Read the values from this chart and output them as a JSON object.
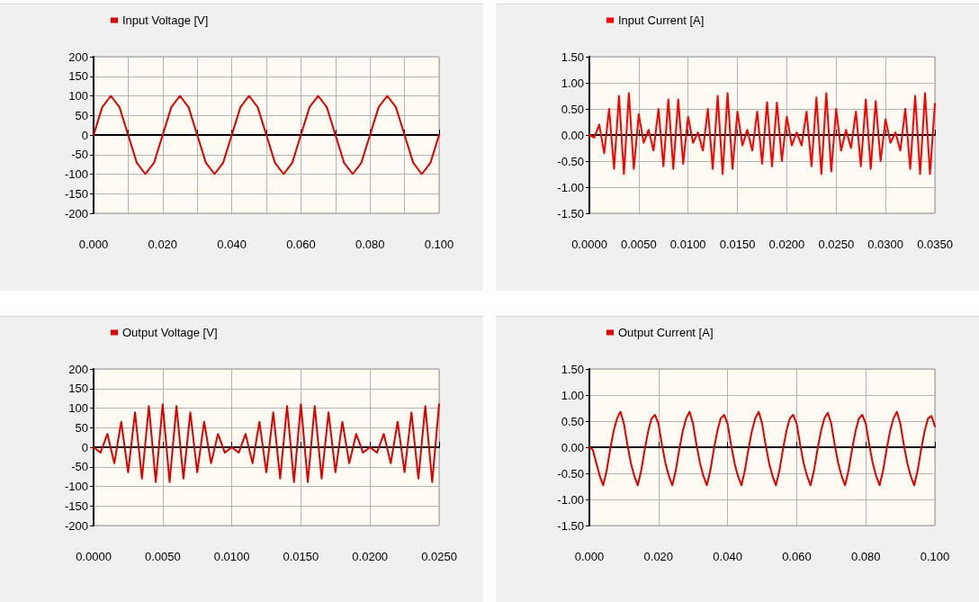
{
  "chart_data": [
    {
      "type": "line",
      "marker": "none",
      "grid": true,
      "legend": "top left",
      "xlim": [
        0,
        0.1
      ],
      "ylim": [
        -200,
        200
      ],
      "xticks": [
        {
          "value": 0,
          "label": "0.000"
        },
        {
          "value": 0.01,
          "label": null
        },
        {
          "value": 0.02,
          "label": "0.020"
        },
        {
          "value": 0.03,
          "label": null
        },
        {
          "value": 0.04,
          "label": "0.040"
        },
        {
          "value": 0.05,
          "label": null
        },
        {
          "value": 0.06,
          "label": "0.060"
        },
        {
          "value": 0.07,
          "label": null
        },
        {
          "value": 0.08,
          "label": "0.080"
        },
        {
          "value": 0.09,
          "label": null
        },
        {
          "value": 0.1,
          "label": "0.100"
        }
      ],
      "yticks": [
        -200,
        -150,
        -100,
        -50,
        0,
        50,
        100,
        150,
        200
      ],
      "series": [
        {
          "name": "Input Voltage [V]",
          "color": "#e00000",
          "x": [
            0,
            0.0025,
            0.005,
            0.0075,
            0.01,
            0.0125,
            0.015,
            0.0175,
            0.02,
            0.0225,
            0.025,
            0.0275,
            0.03,
            0.0325,
            0.035,
            0.0375,
            0.04,
            0.0425,
            0.045,
            0.0475,
            0.05,
            0.0525,
            0.055,
            0.0575,
            0.06,
            0.0625,
            0.065,
            0.0675,
            0.07,
            0.0725,
            0.075,
            0.0775,
            0.08,
            0.0825,
            0.085,
            0.0875,
            0.09,
            0.0925,
            0.095,
            0.0975,
            0.1
          ],
          "values": [
            0,
            71,
            100,
            71,
            0,
            -71,
            -100,
            -71,
            0,
            71,
            100,
            71,
            0,
            -71,
            -100,
            -71,
            0,
            71,
            100,
            71,
            0,
            -71,
            -100,
            -71,
            0,
            71,
            100,
            71,
            0,
            -71,
            -100,
            -71,
            0,
            71,
            100,
            71,
            0,
            -71,
            -100,
            -71,
            0
          ]
        }
      ]
    },
    {
      "type": "line",
      "marker": "none",
      "grid": true,
      "legend": "top left",
      "xlim": [
        0,
        0.035
      ],
      "ylim": [
        -1.5,
        1.5
      ],
      "xticks": [
        {
          "value": 0,
          "label": "0.0000"
        },
        {
          "value": 0.005,
          "label": "0.0050"
        },
        {
          "value": 0.01,
          "label": "0.0100"
        },
        {
          "value": 0.015,
          "label": "0.0150"
        },
        {
          "value": 0.02,
          "label": "0.0200"
        },
        {
          "value": 0.025,
          "label": "0.0250"
        },
        {
          "value": 0.03,
          "label": "0.0300"
        },
        {
          "value": 0.035,
          "label": "0.0350"
        }
      ],
      "yticks": [
        {
          "value": -1.5,
          "label": "-1.50"
        },
        {
          "value": -1,
          "label": "-1.00"
        },
        {
          "value": -0.5,
          "label": "-0.50"
        },
        {
          "value": 0,
          "label": "0.00"
        },
        {
          "value": 0.5,
          "label": "0.50"
        },
        {
          "value": 1,
          "label": "1.00"
        },
        {
          "value": 1.5,
          "label": "1.50"
        }
      ],
      "series": [
        {
          "name": "Input Current [A]",
          "color": "#ff0000",
          "x": [
            0,
            0.0005,
            0.001,
            0.0015,
            0.002,
            0.0025,
            0.003,
            0.0035,
            0.004,
            0.0045,
            0.005,
            0.0055,
            0.006,
            0.0065,
            0.007,
            0.0075,
            0.008,
            0.0085,
            0.009,
            0.0095,
            0.01,
            0.0105,
            0.011,
            0.0115,
            0.012,
            0.0125,
            0.013,
            0.0135,
            0.014,
            0.0145,
            0.015,
            0.0155,
            0.016,
            0.0165,
            0.017,
            0.0175,
            0.018,
            0.0185,
            0.019,
            0.0195,
            0.02,
            0.0205,
            0.021,
            0.0215,
            0.022,
            0.0225,
            0.023,
            0.0235,
            0.024,
            0.0245,
            0.025,
            0.0255,
            0.026,
            0.0265,
            0.027,
            0.0275,
            0.028,
            0.0285,
            0.029,
            0.0295,
            0.03,
            0.0305,
            0.031,
            0.0315,
            0.032,
            0.0325,
            0.033,
            0.0335,
            0.034,
            0.0345,
            0.035
          ],
          "values": [
            0,
            -0.05,
            0.2,
            -0.35,
            0.5,
            -0.65,
            0.75,
            -0.75,
            0.8,
            -0.65,
            0.4,
            -0.15,
            0.1,
            -0.3,
            0.5,
            -0.6,
            0.68,
            -0.65,
            0.68,
            -0.55,
            0.35,
            -0.15,
            0.05,
            -0.3,
            0.5,
            -0.65,
            0.75,
            -0.75,
            0.8,
            -0.65,
            0.45,
            -0.2,
            0.1,
            -0.3,
            0.45,
            -0.55,
            0.63,
            -0.6,
            0.62,
            -0.5,
            0.35,
            -0.2,
            0.05,
            -0.2,
            0.45,
            -0.6,
            0.72,
            -0.75,
            0.8,
            -0.7,
            0.5,
            -0.3,
            0.1,
            -0.25,
            0.45,
            -0.6,
            0.68,
            -0.65,
            0.65,
            -0.5,
            0.3,
            -0.15,
            0.05,
            -0.3,
            0.5,
            -0.65,
            0.75,
            -0.75,
            0.8,
            -0.75,
            0.6
          ]
        }
      ]
    },
    {
      "type": "line",
      "marker": "none",
      "grid": true,
      "legend": "top left",
      "xlim": [
        0,
        0.025
      ],
      "ylim": [
        -200,
        200
      ],
      "xticks": [
        {
          "value": 0,
          "label": "0.0000"
        },
        {
          "value": 0.005,
          "label": "0.0050"
        },
        {
          "value": 0.01,
          "label": "0.0100"
        },
        {
          "value": 0.015,
          "label": "0.0150"
        },
        {
          "value": 0.02,
          "label": "0.0200"
        },
        {
          "value": 0.025,
          "label": "0.0250"
        }
      ],
      "yticks": [
        -200,
        -150,
        -100,
        -50,
        0,
        50,
        100,
        150,
        200
      ],
      "series": [
        {
          "name": "Output Voltage [V]",
          "color": "#e00000",
          "x": [
            0,
            0.0005,
            0.001,
            0.0015,
            0.002,
            0.0025,
            0.003,
            0.0035,
            0.004,
            0.0045,
            0.005,
            0.0055,
            0.006,
            0.0065,
            0.007,
            0.0075,
            0.008,
            0.0085,
            0.009,
            0.0095,
            0.01,
            0.0105,
            0.011,
            0.0115,
            0.012,
            0.0125,
            0.013,
            0.0135,
            0.014,
            0.0145,
            0.015,
            0.0155,
            0.016,
            0.0165,
            0.017,
            0.0175,
            0.018,
            0.0185,
            0.019,
            0.0195,
            0.02,
            0.0205,
            0.021,
            0.0215,
            0.022,
            0.0225,
            0.023,
            0.0235,
            0.024,
            0.0245,
            0.025
          ],
          "values": [
            0,
            -14,
            34,
            -41,
            65,
            -64,
            89,
            -80,
            105,
            -89,
            110,
            -89,
            105,
            -80,
            89,
            -64,
            65,
            -41,
            34,
            -14,
            0,
            -14,
            34,
            -41,
            65,
            -64,
            89,
            -80,
            105,
            -89,
            110,
            -89,
            105,
            -80,
            89,
            -64,
            65,
            -41,
            34,
            -14,
            0,
            -14,
            34,
            -41,
            65,
            -64,
            89,
            -80,
            105,
            -89,
            110
          ]
        }
      ]
    },
    {
      "type": "line",
      "marker": "none",
      "grid": true,
      "legend": "top left",
      "xlim": [
        0,
        0.1
      ],
      "ylim": [
        -1.5,
        1.5
      ],
      "xticks": [
        {
          "value": 0,
          "label": "0.000"
        },
        {
          "value": 0.02,
          "label": "0.020"
        },
        {
          "value": 0.04,
          "label": "0.040"
        },
        {
          "value": 0.06,
          "label": "0.060"
        },
        {
          "value": 0.08,
          "label": "0.080"
        },
        {
          "value": 0.1,
          "label": "0.100"
        }
      ],
      "yticks": [
        {
          "value": -1.5,
          "label": "-1.50"
        },
        {
          "value": -1,
          "label": "-1.00"
        },
        {
          "value": -0.5,
          "label": "-0.50"
        },
        {
          "value": 0,
          "label": "0.00"
        },
        {
          "value": 0.5,
          "label": "0.50"
        },
        {
          "value": 1,
          "label": "1.00"
        },
        {
          "value": 1.5,
          "label": "1.50"
        }
      ],
      "series": [
        {
          "name": "Output Current [A]",
          "color": "#e00000",
          "x": [
            0,
            0.001,
            0.002,
            0.003,
            0.004,
            0.005,
            0.006,
            0.007,
            0.008,
            0.009,
            0.01,
            0.011,
            0.012,
            0.013,
            0.014,
            0.015,
            0.016,
            0.017,
            0.018,
            0.019,
            0.02,
            0.021,
            0.022,
            0.023,
            0.024,
            0.025,
            0.026,
            0.027,
            0.028,
            0.029,
            0.03,
            0.031,
            0.032,
            0.033,
            0.034,
            0.035,
            0.036,
            0.037,
            0.038,
            0.039,
            0.04,
            0.041,
            0.042,
            0.043,
            0.044,
            0.045,
            0.046,
            0.047,
            0.048,
            0.049,
            0.05,
            0.051,
            0.052,
            0.053,
            0.054,
            0.055,
            0.056,
            0.057,
            0.058,
            0.059,
            0.06,
            0.061,
            0.062,
            0.063,
            0.064,
            0.065,
            0.066,
            0.067,
            0.068,
            0.069,
            0.07,
            0.071,
            0.072,
            0.073,
            0.074,
            0.075,
            0.076,
            0.077,
            0.078,
            0.079,
            0.08,
            0.081,
            0.082,
            0.083,
            0.084,
            0.085,
            0.086,
            0.087,
            0.088,
            0.089,
            0.09,
            0.091,
            0.092,
            0.093,
            0.094,
            0.095,
            0.096,
            0.097,
            0.098,
            0.099,
            0.1
          ],
          "values": [
            0,
            -0.05,
            -0.3,
            -0.55,
            -0.73,
            -0.45,
            -0.05,
            0.3,
            0.55,
            0.68,
            0.45,
            0.05,
            -0.3,
            -0.55,
            -0.73,
            -0.45,
            -0.05,
            0.3,
            0.55,
            0.62,
            0.45,
            0.05,
            -0.3,
            -0.55,
            -0.73,
            -0.45,
            -0.05,
            0.3,
            0.55,
            0.68,
            0.45,
            0.05,
            -0.3,
            -0.55,
            -0.73,
            -0.45,
            -0.05,
            0.3,
            0.55,
            0.62,
            0.45,
            0.05,
            -0.3,
            -0.55,
            -0.73,
            -0.45,
            -0.05,
            0.3,
            0.55,
            0.68,
            0.45,
            0.05,
            -0.3,
            -0.55,
            -0.73,
            -0.45,
            -0.05,
            0.3,
            0.55,
            0.62,
            0.45,
            0.05,
            -0.3,
            -0.55,
            -0.73,
            -0.45,
            -0.05,
            0.3,
            0.55,
            0.66,
            0.45,
            0.05,
            -0.3,
            -0.55,
            -0.73,
            -0.45,
            -0.05,
            0.3,
            0.55,
            0.62,
            0.45,
            0.05,
            -0.3,
            -0.55,
            -0.73,
            -0.45,
            -0.05,
            0.3,
            0.55,
            0.68,
            0.45,
            0.05,
            -0.3,
            -0.55,
            -0.73,
            -0.45,
            -0.05,
            0.3,
            0.55,
            0.6,
            0.4
          ]
        }
      ]
    }
  ]
}
